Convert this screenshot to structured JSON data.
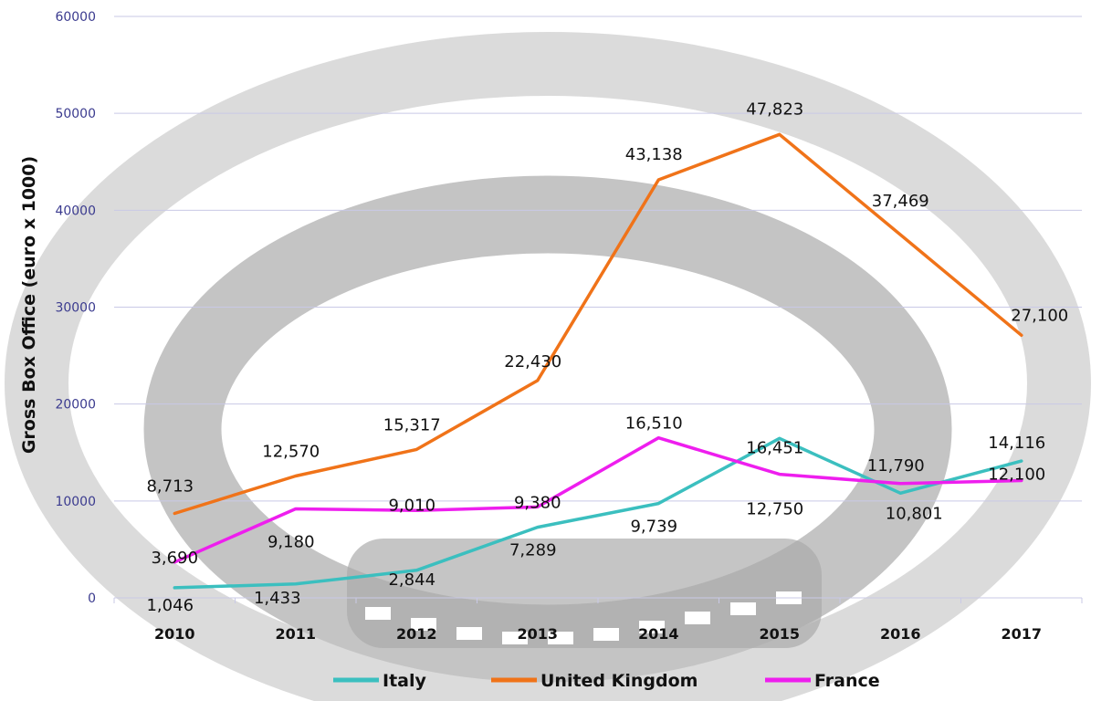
{
  "chart_data": {
    "type": "line",
    "title": "",
    "xlabel": "",
    "ylabel": "Gross Box Office (euro x 1000)",
    "ylim": [
      0,
      60000
    ],
    "yticks": [
      0,
      10000,
      20000,
      30000,
      40000,
      50000,
      60000
    ],
    "grid": true,
    "legend_position": "bottom",
    "categories": [
      "2010",
      "2011",
      "2012",
      "2013",
      "2014",
      "2015",
      "2016",
      "2017"
    ],
    "series": [
      {
        "name": "Italy",
        "color": "#3bbfbf",
        "values": [
          1046,
          1433,
          2844,
          7289,
          9739,
          16451,
          10801,
          14116
        ],
        "labels": [
          "1,046",
          "1,433",
          "2,844",
          "7,289",
          "9,739",
          "16,451",
          "10,801",
          "14,116"
        ]
      },
      {
        "name": "United Kingdom",
        "color": "#f07319",
        "values": [
          8713,
          12570,
          15317,
          22430,
          43138,
          47823,
          37469,
          27100
        ],
        "labels": [
          "8,713",
          "12,570",
          "15,317",
          "22,430",
          "43,138",
          "47,823",
          "37,469",
          "27,100"
        ]
      },
      {
        "name": "France",
        "color": "#ee1eee",
        "values": [
          3690,
          9180,
          9010,
          9380,
          16510,
          12750,
          11790,
          12100
        ],
        "labels": [
          "3,690",
          "9,180",
          "9,010",
          "9,380",
          "16,510",
          "12,750",
          "11,790",
          "12,100"
        ]
      }
    ]
  }
}
